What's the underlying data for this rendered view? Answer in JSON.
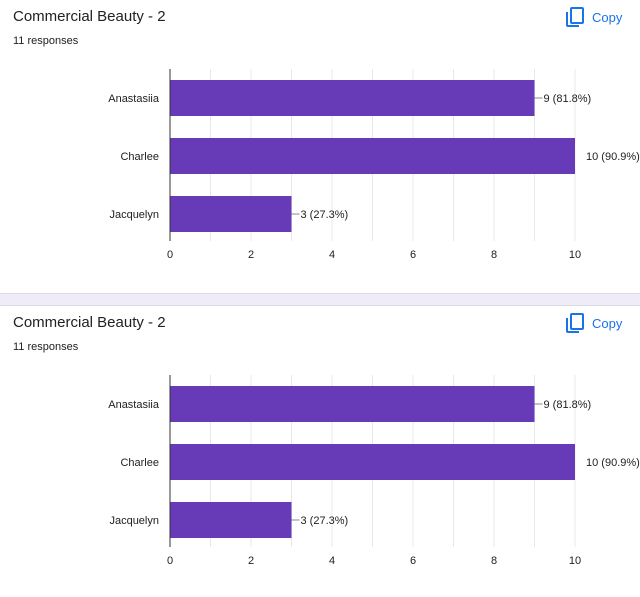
{
  "cards": [
    {
      "title": "Commercial Beauty - 2",
      "responses": "11 responses",
      "copy_label": "Copy"
    },
    {
      "title": "Commercial Beauty - 2",
      "responses": "11 responses",
      "copy_label": "Copy"
    }
  ],
  "colors": {
    "bar": "#673ab7",
    "accent": "#1a73e8",
    "separator": "#f0ebf8",
    "grid": "#e8e8e8",
    "axis": "#333333",
    "text": "#202124"
  },
  "icons": {
    "copy": "copy-icon"
  },
  "chart_data": [
    {
      "type": "bar",
      "orientation": "horizontal",
      "title": "Commercial Beauty - 2",
      "categories": [
        "Anastasiia",
        "Charlee",
        "Jacquelyn"
      ],
      "values": [
        9,
        10,
        3
      ],
      "data_labels": [
        "9 (81.8%)",
        "10 (90.9%)",
        "3 (27.3%)"
      ],
      "xlim": [
        0,
        10
      ],
      "xticks": [
        0,
        2,
        4,
        6,
        8,
        10
      ],
      "grid": true,
      "legend": "none"
    },
    {
      "type": "bar",
      "orientation": "horizontal",
      "title": "Commercial Beauty - 2",
      "categories": [
        "Anastasiia",
        "Charlee",
        "Jacquelyn"
      ],
      "values": [
        9,
        10,
        3
      ],
      "data_labels": [
        "9 (81.8%)",
        "10 (90.9%)",
        "3 (27.3%)"
      ],
      "xlim": [
        0,
        10
      ],
      "xticks": [
        0,
        2,
        4,
        6,
        8,
        10
      ],
      "grid": true,
      "legend": "none"
    }
  ]
}
